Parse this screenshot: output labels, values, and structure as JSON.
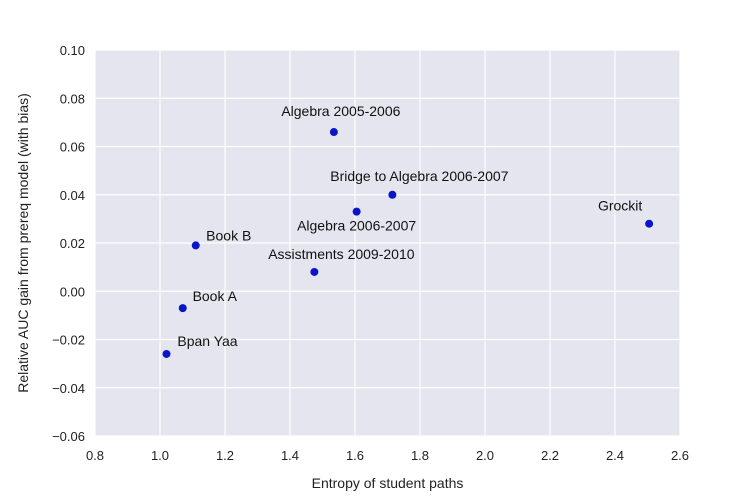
{
  "chart_data": {
    "type": "scatter",
    "xlabel": "Entropy of student paths",
    "ylabel": "Relative AUC gain from prereq model (with bias)",
    "xlim": [
      0.8,
      2.6
    ],
    "ylim": [
      -0.06,
      0.1
    ],
    "xticks": [
      0.8,
      1.0,
      1.2,
      1.4,
      1.6,
      1.8,
      2.0,
      2.2,
      2.4,
      2.6
    ],
    "xtick_labels": [
      "0.8",
      "1.0",
      "1.2",
      "1.4",
      "1.6",
      "1.8",
      "2.0",
      "2.2",
      "2.4",
      "2.6"
    ],
    "yticks": [
      -0.06,
      -0.04,
      -0.02,
      0.0,
      0.02,
      0.04,
      0.06,
      0.08,
      0.1
    ],
    "ytick_labels": [
      "−0.06",
      "−0.04",
      "−0.02",
      "0.00",
      "0.02",
      "0.04",
      "0.06",
      "0.08",
      "0.10"
    ],
    "grid": true,
    "background_color": "#e5e5ef",
    "grid_color": "#ffffff",
    "point_color": "#0a14c8",
    "points": [
      {
        "label": "Algebra 2005-2006",
        "x": 1.535,
        "y": 0.066
      },
      {
        "label": "Bridge to Algebra 2006-2007",
        "x": 1.715,
        "y": 0.04
      },
      {
        "label": "Algebra 2006-2007",
        "x": 1.605,
        "y": 0.033
      },
      {
        "label": "Grockit",
        "x": 2.505,
        "y": 0.028
      },
      {
        "label": "Book B",
        "x": 1.11,
        "y": 0.019
      },
      {
        "label": "Assistments 2009-2010",
        "x": 1.475,
        "y": 0.008
      },
      {
        "label": "Book A",
        "x": 1.07,
        "y": -0.007
      },
      {
        "label": "Bpan Yaa",
        "x": 1.02,
        "y": -0.026
      }
    ]
  }
}
